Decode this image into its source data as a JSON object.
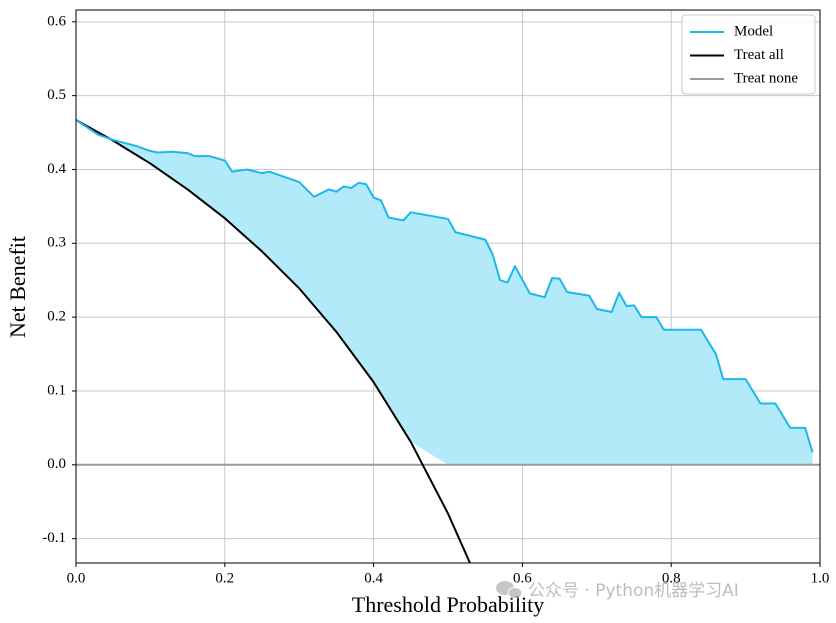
{
  "chart_data": {
    "type": "line",
    "x_label": "Threshold Probability",
    "y_label": "Net Benefit",
    "xlim": [
      0,
      1
    ],
    "ylim": [
      -0.133,
      0.616
    ],
    "xticks": [
      {
        "value": 0,
        "label": "0.0"
      },
      0.2,
      0.4,
      0.6,
      0.8,
      {
        "value": 1,
        "label": "1.0"
      }
    ],
    "yticks": [
      -0.1,
      {
        "value": 0,
        "label": "0.0"
      },
      0.1,
      0.2,
      0.3,
      0.4,
      0.5,
      0.6
    ],
    "grid": true,
    "legend_position": "upper right",
    "fill_color": "#b3eafa",
    "watermark": "公众号 · Python机器学习AI",
    "series": [
      {
        "name": "Model",
        "color": "#1ab8ec",
        "x": [
          0,
          0.03,
          0.05,
          0.08,
          0.1,
          0.11,
          0.13,
          0.15,
          0.16,
          0.18,
          0.2,
          0.21,
          0.23,
          0.25,
          0.26,
          0.3,
          0.32,
          0.34,
          0.35,
          0.36,
          0.37,
          0.38,
          0.39,
          0.4,
          0.41,
          0.42,
          0.44,
          0.45,
          0.5,
          0.51,
          0.55,
          0.56,
          0.57,
          0.58,
          0.59,
          0.61,
          0.63,
          0.64,
          0.65,
          0.66,
          0.69,
          0.7,
          0.72,
          0.73,
          0.74,
          0.75,
          0.76,
          0.78,
          0.79,
          0.84,
          0.86,
          0.87,
          0.9,
          0.92,
          0.94,
          0.96,
          0.98,
          0.99
        ],
        "values": [
          0.467,
          0.447,
          0.44,
          0.432,
          0.425,
          0.423,
          0.424,
          0.422,
          0.418,
          0.418,
          0.412,
          0.397,
          0.4,
          0.395,
          0.397,
          0.383,
          0.363,
          0.373,
          0.37,
          0.377,
          0.375,
          0.382,
          0.38,
          0.362,
          0.358,
          0.335,
          0.331,
          0.342,
          0.333,
          0.315,
          0.305,
          0.285,
          0.25,
          0.247,
          0.269,
          0.232,
          0.227,
          0.253,
          0.252,
          0.234,
          0.229,
          0.211,
          0.207,
          0.233,
          0.215,
          0.216,
          0.2,
          0.2,
          0.183,
          0.183,
          0.15,
          0.116,
          0.116,
          0.083,
          0.083,
          0.05,
          0.05,
          0.017
        ]
      },
      {
        "name": "Treat all",
        "color": "#000000",
        "x": [
          0,
          0.05,
          0.1,
          0.15,
          0.2,
          0.25,
          0.3,
          0.35,
          0.4,
          0.45,
          0.5,
          0.53
        ],
        "values": [
          0.467,
          0.439,
          0.408,
          0.373,
          0.334,
          0.289,
          0.239,
          0.18,
          0.112,
          0.031,
          -0.066,
          -0.134
        ]
      },
      {
        "name": "Treat none",
        "color": "#999999",
        "x": [
          0,
          1
        ],
        "values": [
          0,
          0
        ]
      }
    ]
  }
}
